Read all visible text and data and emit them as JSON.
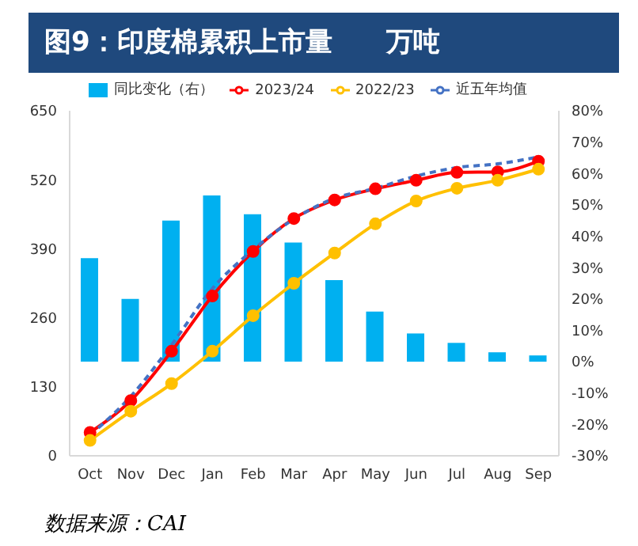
{
  "chart_data": {
    "type": "line",
    "title": "图9：印度棉累积上市量　　万吨",
    "categories": [
      "Oct",
      "Nov",
      "Dec",
      "Jan",
      "Feb",
      "Mar",
      "Apr",
      "May",
      "Jun",
      "Jul",
      "Aug",
      "Sep"
    ],
    "series": [
      {
        "name": "同比变化（右）",
        "type": "bar",
        "axis": "y2",
        "color": "#00b0f0",
        "values": [
          33,
          20,
          45,
          53,
          47,
          38,
          26,
          16,
          9,
          6,
          3,
          2
        ]
      },
      {
        "name": "2023/24",
        "color": "#ff0000",
        "marker": "circle",
        "line_style": "solid",
        "values": [
          44,
          104,
          197,
          301,
          385,
          447,
          482,
          503,
          519,
          534,
          535,
          555
        ]
      },
      {
        "name": "2022/23",
        "color": "#ffc000",
        "marker": "circle",
        "line_style": "solid",
        "values": [
          29,
          84,
          136,
          197,
          264,
          325,
          382,
          437,
          480,
          504,
          519,
          540
        ]
      },
      {
        "name": "近五年均值",
        "color": "#4472c4",
        "marker": "none",
        "line_style": "dashed",
        "values": [
          39,
          112,
          209,
          315,
          388,
          446,
          485,
          504,
          527,
          543,
          550,
          563
        ]
      }
    ],
    "ylim": [
      0,
      650
    ],
    "yticks": [
      0,
      130,
      260,
      390,
      520,
      650
    ],
    "y2lim": [
      -30,
      80
    ],
    "y2ticks": [
      {
        "value": -30,
        "label": "-30%"
      },
      {
        "value": -20,
        "label": "-20%"
      },
      {
        "value": -10,
        "label": "-10%"
      },
      {
        "value": 0,
        "label": "0%"
      },
      {
        "value": 10,
        "label": "10%"
      },
      {
        "value": 20,
        "label": "20%"
      },
      {
        "value": 30,
        "label": "30%"
      },
      {
        "value": 40,
        "label": "40%"
      },
      {
        "value": 50,
        "label": "50%"
      },
      {
        "value": 60,
        "label": "60%"
      },
      {
        "value": 70,
        "label": "70%"
      },
      {
        "value": 80,
        "label": "80%"
      }
    ],
    "grid": false,
    "legend": "top",
    "annotations": [
      "数据来源：CAI"
    ]
  }
}
